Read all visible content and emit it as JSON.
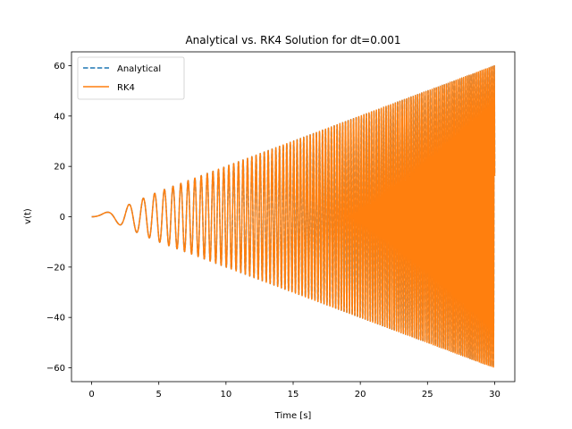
{
  "chart_data": {
    "type": "line",
    "title": "Analytical vs. RK4 Solution for dt=0.001",
    "xlabel": "Time [s]",
    "ylabel": "v(t)",
    "xlim": [
      -1.5,
      31.5
    ],
    "ylim": [
      -65.5,
      65.5
    ],
    "xticks": [
      0,
      5,
      10,
      15,
      20,
      25,
      30
    ],
    "xtick_labels": [
      "0",
      "5",
      "10",
      "15",
      "20",
      "25",
      "30"
    ],
    "yticks": [
      -60,
      -40,
      -20,
      0,
      20,
      40,
      60
    ],
    "ytick_labels": [
      "−60",
      "−40",
      "−20",
      "0",
      "20",
      "40",
      "60"
    ],
    "grid": false,
    "legend_position": "upper-left",
    "series": [
      {
        "name": "Analytical",
        "style": "dashed",
        "color": "#1f77b4",
        "x": [
          0,
          1,
          2,
          3,
          5,
          7,
          10,
          15,
          20,
          25,
          30
        ],
        "envelope_max": [
          0,
          1.6,
          3,
          5.4,
          10,
          14,
          20,
          30,
          40,
          50,
          60
        ],
        "envelope_min": [
          0,
          -1.6,
          -3,
          -5.4,
          -10,
          -14,
          -20,
          -30,
          -40,
          -50,
          -60
        ]
      },
      {
        "name": "RK4",
        "style": "solid",
        "color": "#ff7f0e",
        "x": [
          0,
          1,
          2,
          3,
          5,
          7,
          10,
          15,
          20,
          25,
          30
        ],
        "envelope_max": [
          0,
          1.6,
          3,
          5.4,
          10,
          14,
          20,
          30,
          40,
          50,
          60
        ],
        "envelope_min": [
          0,
          -1.6,
          -3,
          -5.4,
          -10,
          -14,
          -20,
          -30,
          -40,
          -50,
          -60
        ]
      }
    ]
  }
}
